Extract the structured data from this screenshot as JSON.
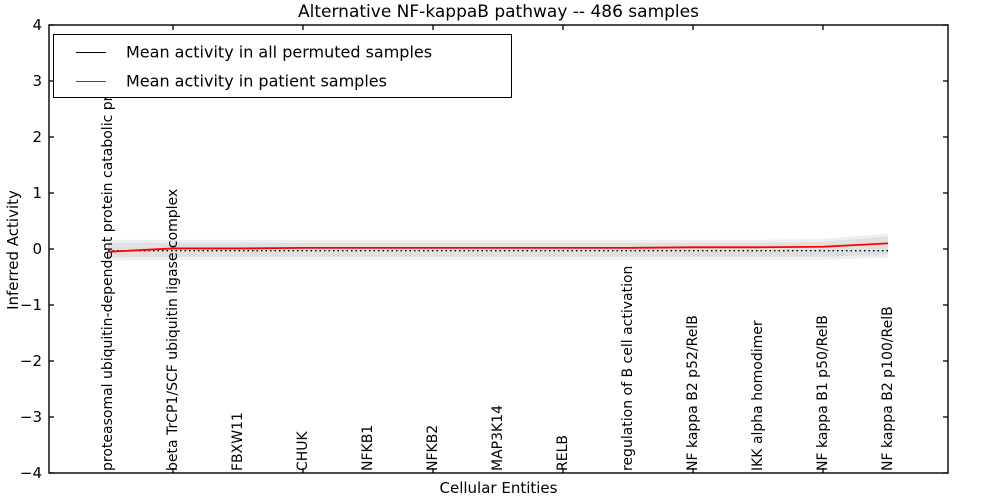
{
  "title": "Alternative NF-kappaB pathway -- 486 samples",
  "axes": {
    "xlabel": "Cellular Entities",
    "ylabel": "Inferred Activity"
  },
  "legend": {
    "entries": [
      {
        "label": "Mean activity in all permuted samples",
        "color": "#000000"
      },
      {
        "label": "Mean activity in patient samples",
        "color": "#ff0000"
      }
    ]
  },
  "chart_data": {
    "type": "line",
    "title": "Alternative NF-kappaB pathway -- 486 samples",
    "xlabel": "Cellular Entities",
    "ylabel": "Inferred Activity",
    "ylim": [
      -4,
      4
    ],
    "yticks": [
      -4,
      -3,
      -2,
      -1,
      0,
      1,
      2,
      3,
      4
    ],
    "grid": false,
    "legend_position": "upper left",
    "categories": [
      "proteasomal ubiquitin-dependent protein catabolic process",
      "beta TrCP1/SCF ubiquitin ligase complex",
      "FBXW11",
      "CHUK",
      "NFKB1",
      "NFKB2",
      "MAP3K14",
      "RELB",
      "regulation of B cell activation",
      "NF kappa B2 p52/RelB",
      "IKK alpha homodimer",
      "NF kappa B1 p50/RelB",
      "NF kappa B2 p100/RelB"
    ],
    "xtick_mark_indices": [
      1,
      3,
      5,
      7,
      9,
      11
    ],
    "series": [
      {
        "name": "Mean activity in all permuted samples",
        "color": "#000000",
        "linestyle": "dotted",
        "values": [
          -0.03,
          -0.03,
          -0.03,
          -0.03,
          -0.03,
          -0.03,
          -0.03,
          -0.03,
          -0.03,
          -0.03,
          -0.03,
          -0.03,
          -0.03
        ]
      },
      {
        "name": "Mean activity in patient samples",
        "color": "#ff0000",
        "linestyle": "solid",
        "values": [
          -0.05,
          0.01,
          0.01,
          0.02,
          0.02,
          0.02,
          0.02,
          0.02,
          0.02,
          0.03,
          0.03,
          0.04,
          0.1
        ]
      }
    ],
    "band": {
      "name": "permuted sample spread",
      "color": "#e0e0e0",
      "edge_color": "#efefef",
      "upper": [
        0.11,
        0.11,
        0.11,
        0.11,
        0.11,
        0.11,
        0.11,
        0.11,
        0.11,
        0.11,
        0.11,
        0.13,
        0.22
      ],
      "lower": [
        -0.15,
        -0.14,
        -0.14,
        -0.14,
        -0.14,
        -0.14,
        -0.14,
        -0.14,
        -0.14,
        -0.14,
        -0.14,
        -0.14,
        -0.1
      ]
    }
  }
}
